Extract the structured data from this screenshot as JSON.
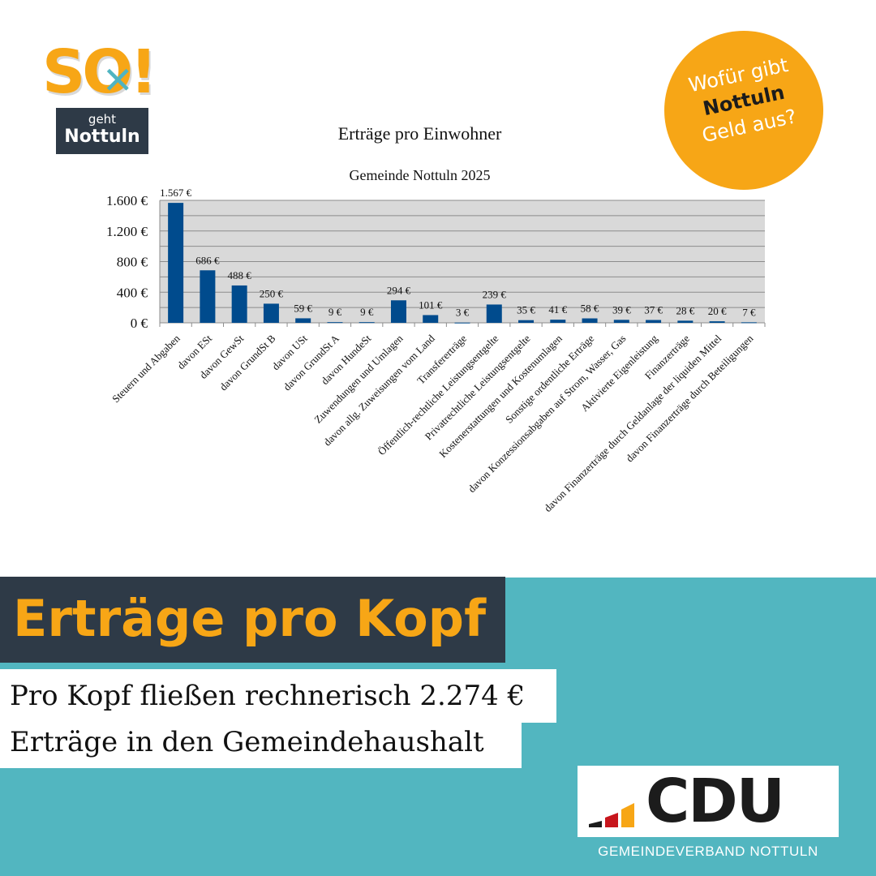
{
  "logo": {
    "brand": "SO!",
    "verb": "geht",
    "place": "Nottuln"
  },
  "badge": {
    "line1": "Wofür gibt",
    "line2": "Nottuln",
    "line3": "Geld aus?"
  },
  "chart_data": {
    "type": "bar",
    "title": "Erträge pro Einwohner",
    "subtitle": "Gemeinde Nottuln 2025",
    "categories": [
      "Steuern und Abgaben",
      "davon ESt",
      "davon GewSt",
      "davon GrundSt B",
      "davon USt",
      "davon GrundSt A",
      "davon HundeSt",
      "Zuwendungen und Umlagen",
      "davon allg. Zuweisungen vom Land",
      "Transfererträge",
      "Öffentlich-rechtliche Leistungsentgelte",
      "Privatrechtliche Leistungsentgelte",
      "Kostenerstattungen und Kostenumlagen",
      "Sonstige ordentliche Erträge",
      "davon Konzessionsabgaben auf Strom, Wasser, Gas",
      "Aktivierte Eigenleistung",
      "Finanzerträge",
      "davon Finanzerträge durch Geldanlage der liquiden Mittel",
      "davon Finanzerträge durch Beteiligungen"
    ],
    "values": [
      1567,
      686,
      488,
      250,
      59,
      9,
      9,
      294,
      101,
      3,
      239,
      35,
      41,
      58,
      39,
      37,
      28,
      20,
      7
    ],
    "value_labels": [
      "1.567 €",
      "686 €",
      "488 €",
      "250 €",
      "59 €",
      "9 €",
      "9 €",
      "294 €",
      "101 €",
      "3 €",
      "239 €",
      "35 €",
      "41 €",
      "58 €",
      "39 €",
      "37 €",
      "28 €",
      "20 €",
      "7 €"
    ],
    "y_ticks": [
      0,
      400,
      800,
      1200,
      1600
    ],
    "y_tick_labels": [
      "0 €",
      "400 €",
      "800 €",
      "1.200 €",
      "1.600 €"
    ],
    "ylim": [
      0,
      1600
    ],
    "grid": true,
    "bar_color": "#004b8d",
    "plot_background": "#d9d9d9"
  },
  "headline": "Erträge pro Kopf",
  "subline1": "Pro Kopf fließen rechnerisch 2.274 €",
  "subline2": "Erträge in den Gemeindehaushalt",
  "cdu": {
    "wordmark": "CDU",
    "org": "GEMEINDEVERBAND NOTTULN"
  },
  "colors": {
    "orange": "#f7a616",
    "navy": "#2e3a47",
    "teal": "#52b6c0"
  }
}
